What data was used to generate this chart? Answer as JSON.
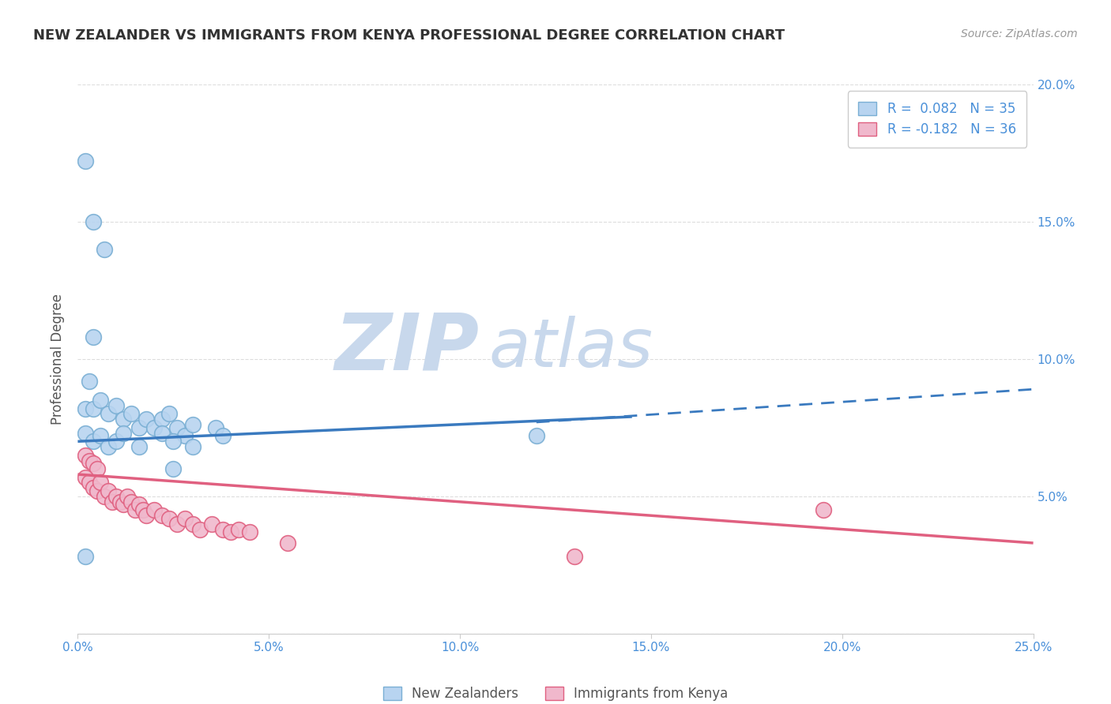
{
  "title": "NEW ZEALANDER VS IMMIGRANTS FROM KENYA PROFESSIONAL DEGREE CORRELATION CHART",
  "source": "Source: ZipAtlas.com",
  "ylabel": "Professional Degree",
  "x_min": 0.0,
  "x_max": 0.25,
  "y_min": 0.0,
  "y_max": 0.2,
  "x_ticks": [
    0.0,
    0.05,
    0.1,
    0.15,
    0.2,
    0.25
  ],
  "x_tick_labels": [
    "0.0%",
    "5.0%",
    "10.0%",
    "15.0%",
    "20.0%",
    "25.0%"
  ],
  "y_ticks": [
    0.0,
    0.05,
    0.1,
    0.15,
    0.2
  ],
  "y_tick_labels_right": [
    "",
    "5.0%",
    "10.0%",
    "15.0%",
    "20.0%"
  ],
  "legend_top": [
    {
      "label": "R =  0.082   N = 35",
      "facecolor": "#b8d4f0",
      "edgecolor": "#7aafd4"
    },
    {
      "label": "R = -0.182   N = 36",
      "facecolor": "#f0b8cc",
      "edgecolor": "#e06080"
    }
  ],
  "legend_bottom": [
    "New Zealanders",
    "Immigrants from Kenya"
  ],
  "nz_fill": "#b8d4f0",
  "nz_edge": "#7aafd4",
  "kenya_fill": "#f0b8cc",
  "kenya_edge": "#e06080",
  "nz_line_color": "#3a7abf",
  "kenya_line_color": "#e06080",
  "watermark_zip_color": "#c8d8ec",
  "watermark_atlas_color": "#c8d8ec",
  "axis_tick_color": "#4a90d9",
  "title_color": "#333333",
  "source_color": "#999999",
  "ylabel_color": "#555555",
  "grid_color": "#dddddd",
  "background": "#ffffff",
  "nz_solid_line": {
    "x0": 0.0,
    "y0": 0.07,
    "x1": 0.145,
    "y1": 0.079
  },
  "nz_dashed_line": {
    "x0": 0.12,
    "y0": 0.077,
    "x1": 0.25,
    "y1": 0.089
  },
  "kenya_line": {
    "x0": 0.0,
    "y0": 0.058,
    "x1": 0.25,
    "y1": 0.033
  },
  "nz_points": [
    [
      0.002,
      0.172
    ],
    [
      0.004,
      0.15
    ],
    [
      0.007,
      0.14
    ],
    [
      0.004,
      0.108
    ],
    [
      0.003,
      0.092
    ],
    [
      0.002,
      0.082
    ],
    [
      0.004,
      0.082
    ],
    [
      0.006,
      0.085
    ],
    [
      0.008,
      0.08
    ],
    [
      0.01,
      0.083
    ],
    [
      0.012,
      0.078
    ],
    [
      0.014,
      0.08
    ],
    [
      0.016,
      0.075
    ],
    [
      0.018,
      0.078
    ],
    [
      0.02,
      0.075
    ],
    [
      0.022,
      0.078
    ],
    [
      0.024,
      0.08
    ],
    [
      0.026,
      0.075
    ],
    [
      0.028,
      0.072
    ],
    [
      0.03,
      0.076
    ],
    [
      0.002,
      0.073
    ],
    [
      0.004,
      0.07
    ],
    [
      0.006,
      0.072
    ],
    [
      0.008,
      0.068
    ],
    [
      0.01,
      0.07
    ],
    [
      0.012,
      0.073
    ],
    [
      0.016,
      0.068
    ],
    [
      0.022,
      0.073
    ],
    [
      0.025,
      0.07
    ],
    [
      0.03,
      0.068
    ],
    [
      0.036,
      0.075
    ],
    [
      0.038,
      0.072
    ],
    [
      0.12,
      0.072
    ],
    [
      0.002,
      0.028
    ],
    [
      0.025,
      0.06
    ]
  ],
  "kenya_points": [
    [
      0.002,
      0.065
    ],
    [
      0.003,
      0.063
    ],
    [
      0.004,
      0.062
    ],
    [
      0.005,
      0.06
    ],
    [
      0.002,
      0.057
    ],
    [
      0.003,
      0.055
    ],
    [
      0.004,
      0.053
    ],
    [
      0.005,
      0.052
    ],
    [
      0.006,
      0.055
    ],
    [
      0.007,
      0.05
    ],
    [
      0.008,
      0.052
    ],
    [
      0.009,
      0.048
    ],
    [
      0.01,
      0.05
    ],
    [
      0.011,
      0.048
    ],
    [
      0.012,
      0.047
    ],
    [
      0.013,
      0.05
    ],
    [
      0.014,
      0.048
    ],
    [
      0.015,
      0.045
    ],
    [
      0.016,
      0.047
    ],
    [
      0.017,
      0.045
    ],
    [
      0.018,
      0.043
    ],
    [
      0.02,
      0.045
    ],
    [
      0.022,
      0.043
    ],
    [
      0.024,
      0.042
    ],
    [
      0.026,
      0.04
    ],
    [
      0.028,
      0.042
    ],
    [
      0.03,
      0.04
    ],
    [
      0.032,
      0.038
    ],
    [
      0.035,
      0.04
    ],
    [
      0.038,
      0.038
    ],
    [
      0.04,
      0.037
    ],
    [
      0.042,
      0.038
    ],
    [
      0.045,
      0.037
    ],
    [
      0.055,
      0.033
    ],
    [
      0.13,
      0.028
    ],
    [
      0.195,
      0.045
    ]
  ]
}
